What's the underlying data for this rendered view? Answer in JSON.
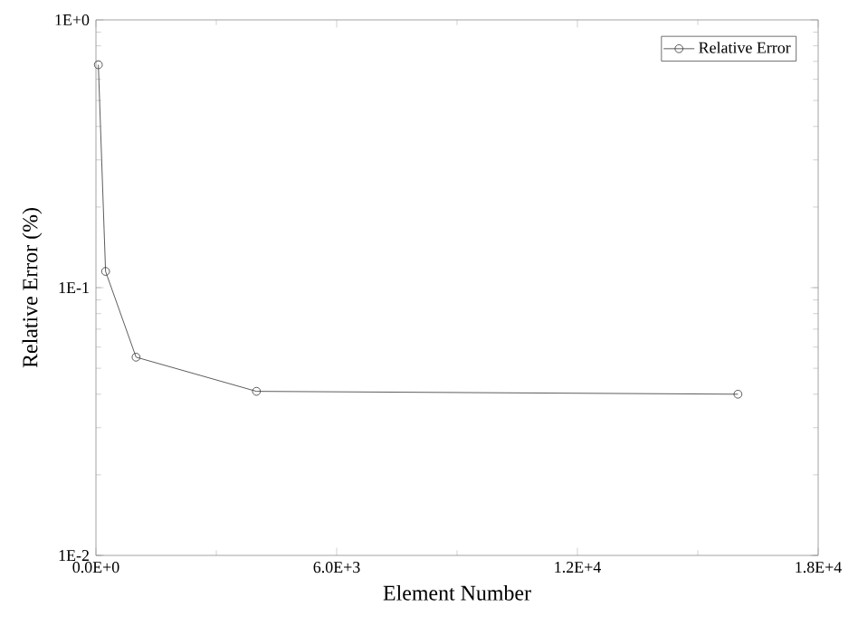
{
  "chart_data": {
    "type": "line",
    "xlabel": "Element Number",
    "ylabel": "Relative Error (%)",
    "x": [
      60,
      240,
      1000,
      4000,
      16000
    ],
    "series": [
      {
        "name": "Relative Error",
        "color": "#333333",
        "values": [
          0.68,
          0.115,
          0.055,
          0.041,
          0.04
        ]
      }
    ],
    "log": "y",
    "marker": "circle",
    "line_style": "solid",
    "legend": "top right",
    "grid": false,
    "xlim": [
      0,
      18000
    ],
    "xticks": [
      {
        "value": 0,
        "label": "0.0E+0"
      },
      {
        "value": 6000,
        "label": "6.0E+3"
      },
      {
        "value": 12000,
        "label": "1.2E+4"
      },
      {
        "value": 18000,
        "label": "1.8E+4"
      }
    ],
    "ylim": [
      0.01,
      1
    ],
    "yticks": [
      {
        "value": 0.01,
        "label": "1E-2"
      },
      {
        "value": 0.1,
        "label": "1E-1"
      },
      {
        "value": 1,
        "label": "1E+0"
      }
    ]
  }
}
